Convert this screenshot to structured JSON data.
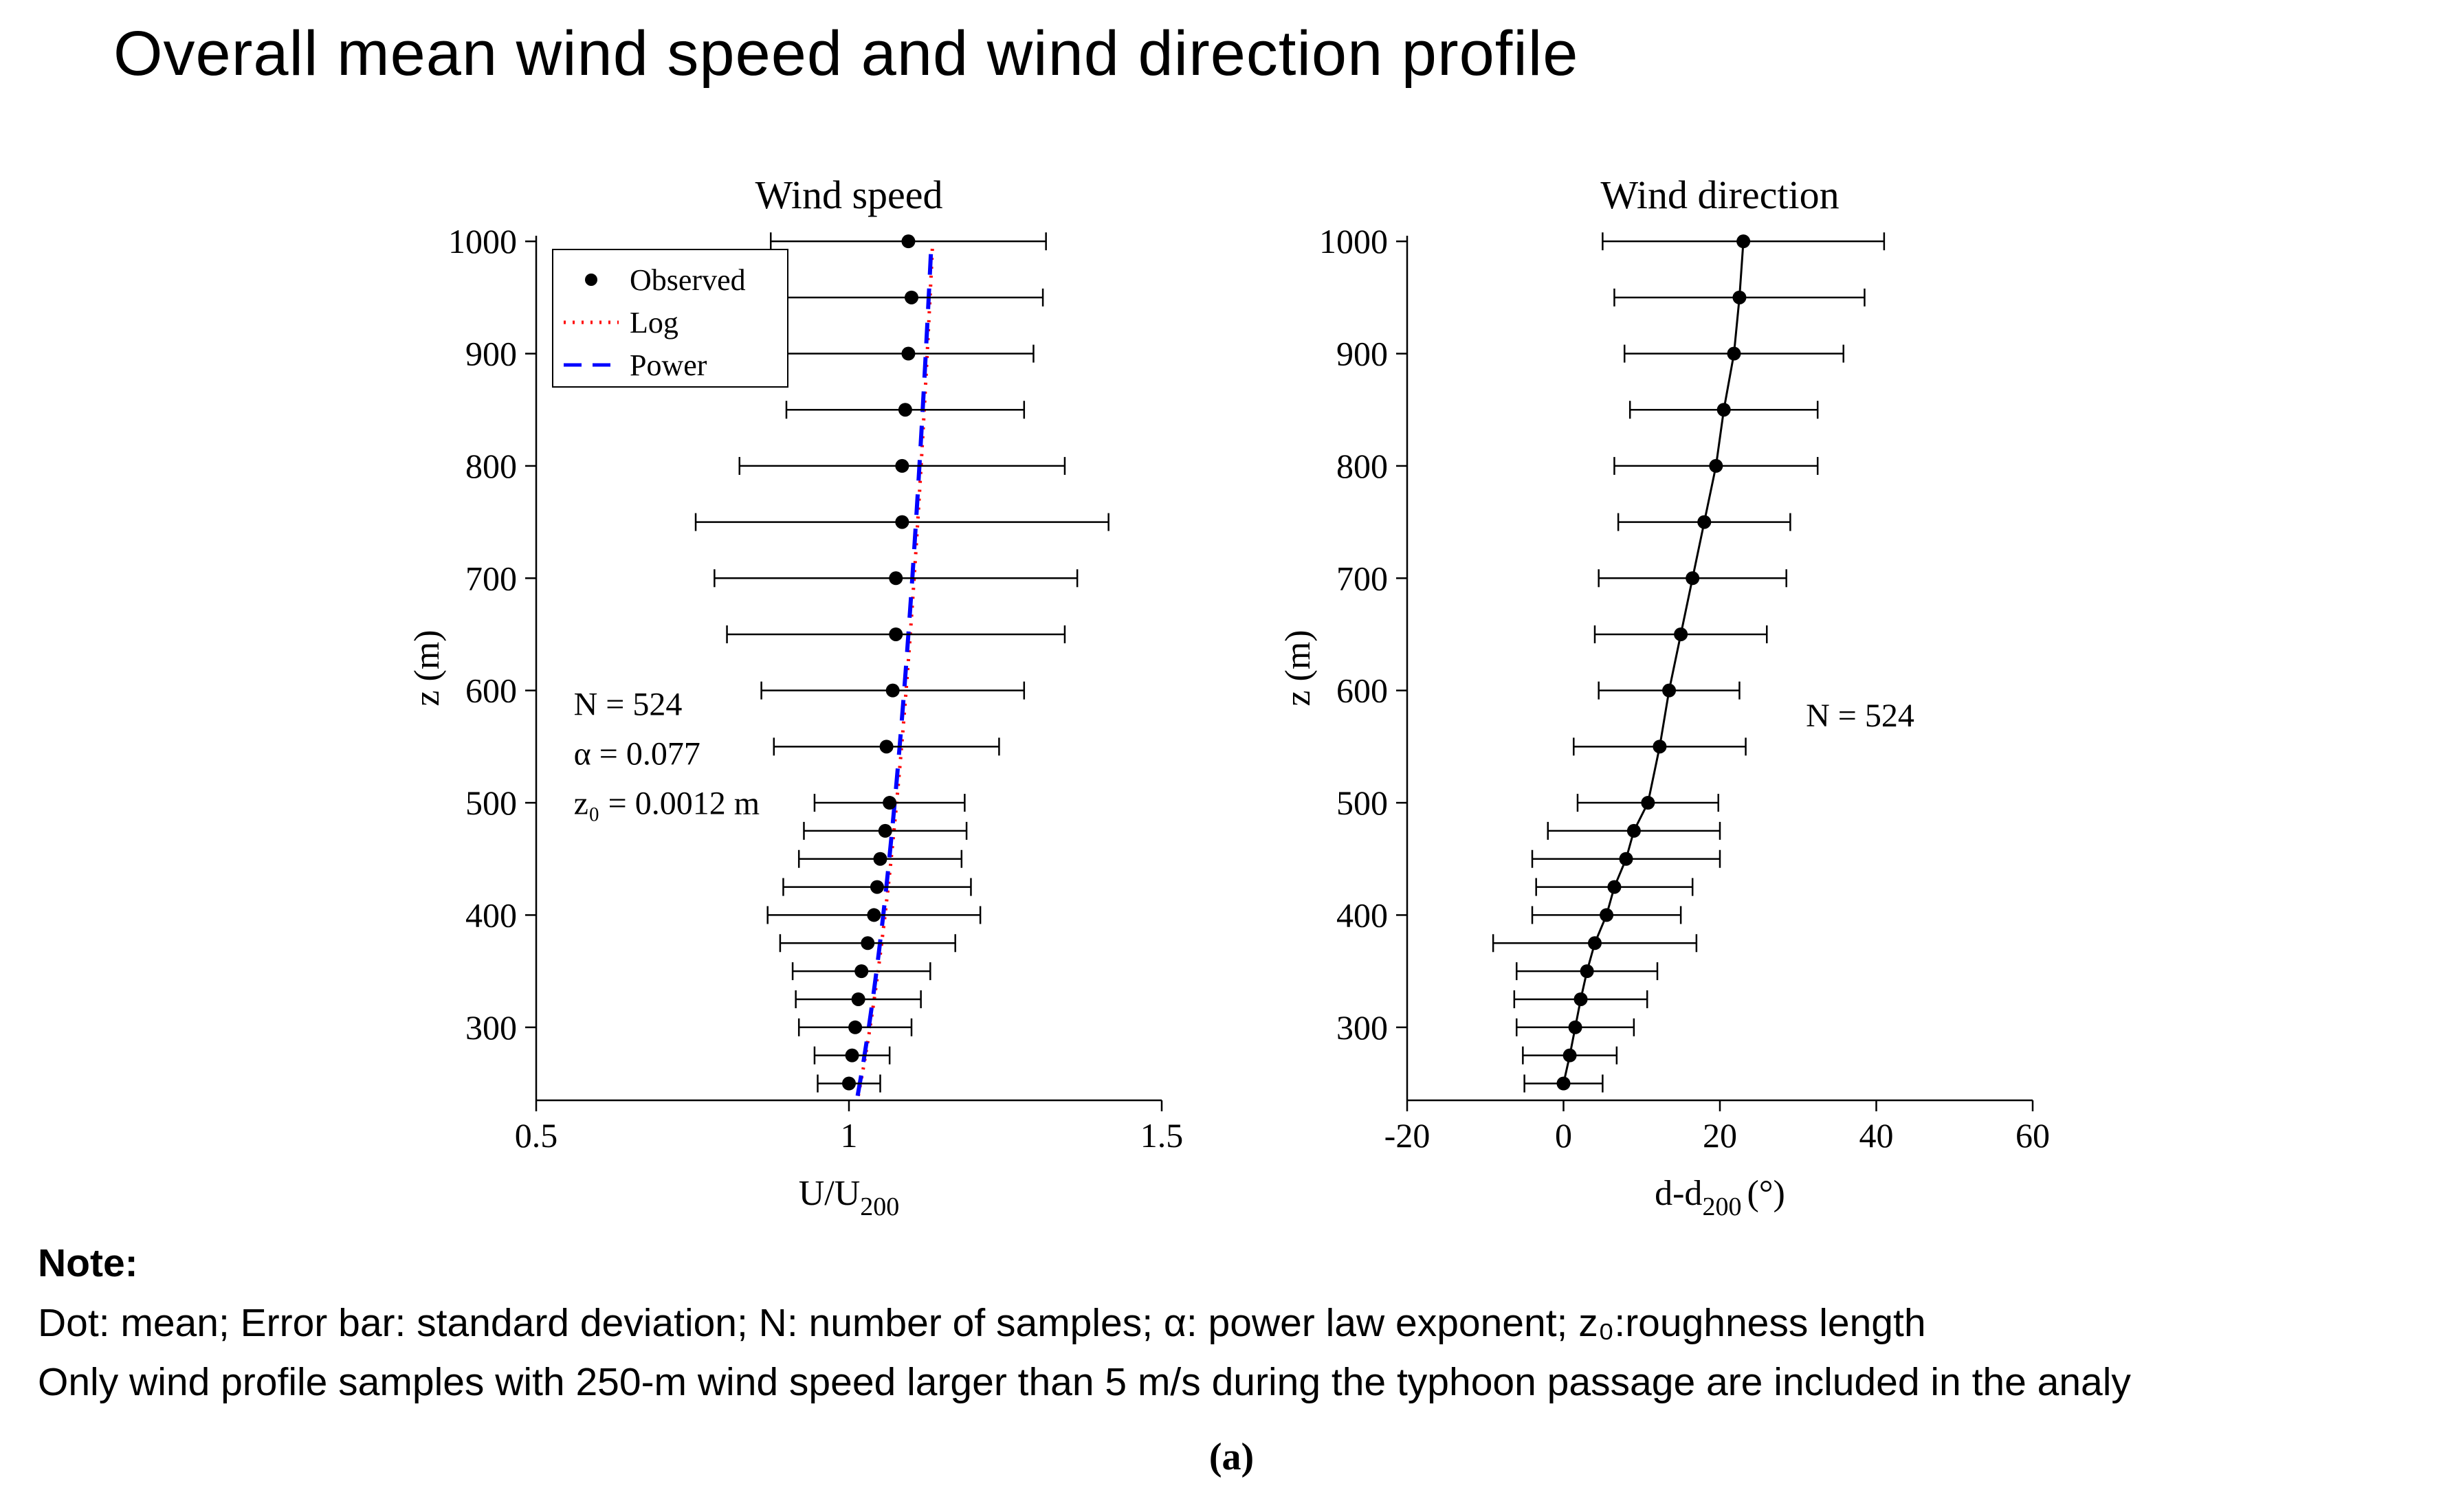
{
  "header": {
    "title": "Overall mean wind speed and wind direction profile"
  },
  "note": {
    "heading": "Note:",
    "line1": "Dot: mean; Error bar: standard deviation; N: number of samples; α: power law exponent; z₀:roughness length",
    "line2": "Only wind profile samples with 250-m wind speed larger than 5 m/s during the typhoon passage are included in the analy"
  },
  "caption": "(a)",
  "colors": {
    "observed": "#000000",
    "log_fit": "#ff0000",
    "power_fit": "#0000ff"
  },
  "chart_data": [
    {
      "type": "line",
      "subtype": "vertical-profile-errorbar",
      "title": "Wind speed",
      "ylabel": "z (m)",
      "xlabel": {
        "prefix": "U/U",
        "sub": "200",
        "suffix": ""
      },
      "xlim": [
        0.5,
        1.5
      ],
      "xticks": [
        0.5,
        1,
        1.5
      ],
      "xtick_labels": [
        "0.5",
        "1",
        "1.5"
      ],
      "ylim": [
        235,
        1005
      ],
      "yticks": [
        300,
        400,
        500,
        600,
        700,
        800,
        900,
        1000
      ],
      "connect": false,
      "z": [
        250,
        275,
        300,
        325,
        350,
        375,
        400,
        425,
        450,
        475,
        500,
        550,
        600,
        650,
        700,
        750,
        800,
        850,
        900,
        950,
        1000
      ],
      "mean": [
        1.0,
        1.005,
        1.01,
        1.015,
        1.02,
        1.03,
        1.04,
        1.045,
        1.05,
        1.058,
        1.065,
        1.06,
        1.07,
        1.075,
        1.075,
        1.085,
        1.085,
        1.09,
        1.095,
        1.1,
        1.095
      ],
      "sd": [
        0.05,
        0.06,
        0.09,
        0.1,
        0.11,
        0.14,
        0.17,
        0.15,
        0.13,
        0.13,
        0.12,
        0.18,
        0.21,
        0.27,
        0.29,
        0.33,
        0.26,
        0.19,
        0.2,
        0.21,
        0.22
      ],
      "fits": [
        {
          "name": "Log",
          "type": "log",
          "z0": 0.0012,
          "zref": 200,
          "style": "dotted",
          "color": "#ff0000"
        },
        {
          "name": "Power",
          "type": "power",
          "alpha": 0.077,
          "zref": 200,
          "style": "dashed",
          "color": "#0000ff"
        }
      ],
      "legend": {
        "position": "top-left",
        "items": [
          {
            "label": "Observed",
            "marker": "dot",
            "color": "#000000"
          },
          {
            "label": "Log",
            "line": "dotted",
            "color": "#ff0000"
          },
          {
            "label": "Power",
            "line": "dashed",
            "color": "#0000ff"
          }
        ]
      },
      "annotations": [
        {
          "text": "N = 524",
          "x": 0.56,
          "z": 578
        },
        {
          "text": "α = 0.077",
          "x": 0.56,
          "z": 534
        },
        {
          "text": "z₀ = 0.0012 m",
          "x": 0.56,
          "z": 490
        }
      ]
    },
    {
      "type": "line",
      "subtype": "vertical-profile-errorbar",
      "title": "Wind direction",
      "ylabel": "z (m)",
      "xlabel": {
        "prefix": "d-d",
        "sub": "200",
        "suffix": "(°)"
      },
      "xlim": [
        -20,
        60
      ],
      "xticks": [
        -20,
        0,
        20,
        40,
        60
      ],
      "xtick_labels": [
        "-20",
        "0",
        "20",
        "40",
        "60"
      ],
      "ylim": [
        235,
        1005
      ],
      "yticks": [
        300,
        400,
        500,
        600,
        700,
        800,
        900,
        1000
      ],
      "connect": true,
      "z": [
        250,
        275,
        300,
        325,
        350,
        375,
        400,
        425,
        450,
        475,
        500,
        550,
        600,
        650,
        700,
        750,
        800,
        850,
        900,
        950,
        1000
      ],
      "mean": [
        0,
        0.8,
        1.5,
        2.2,
        3,
        4,
        5.5,
        6.5,
        8,
        9,
        10.8,
        12.3,
        13.5,
        15,
        16.5,
        18,
        19.5,
        20.5,
        21.8,
        22.5,
        23
      ],
      "sd": [
        5,
        6,
        7.5,
        8.5,
        9,
        13,
        9.5,
        10,
        12,
        11,
        9,
        11,
        9,
        11,
        12,
        11,
        13,
        12,
        14,
        16,
        18
      ],
      "fits": [],
      "legend": null,
      "annotations": [
        {
          "text": "N = 524",
          "x": 31,
          "z": 568
        }
      ]
    }
  ]
}
